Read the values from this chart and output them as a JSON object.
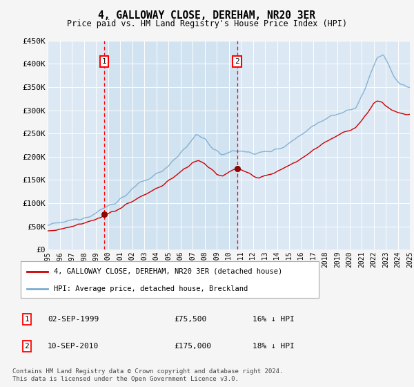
{
  "title": "4, GALLOWAY CLOSE, DEREHAM, NR20 3ER",
  "subtitle": "Price paid vs. HM Land Registry's House Price Index (HPI)",
  "transaction1": {
    "date": "02-SEP-1999",
    "year": 1999.67,
    "price": 75500,
    "label": "1",
    "hpi_pct": "16% ↓ HPI"
  },
  "transaction2": {
    "date": "10-SEP-2010",
    "year": 2010.69,
    "price": 175000,
    "label": "2",
    "hpi_pct": "18% ↓ HPI"
  },
  "legend_entry1": "4, GALLOWAY CLOSE, DEREHAM, NR20 3ER (detached house)",
  "legend_entry2": "HPI: Average price, detached house, Breckland",
  "footnote": "Contains HM Land Registry data © Crown copyright and database right 2024.\nThis data is licensed under the Open Government Licence v3.0.",
  "line_color_red": "#cc0000",
  "line_color_blue": "#7aadcf",
  "plot_bg_color": "#dce8f4",
  "fig_bg_color": "#f5f5f5",
  "shade_color": "#c8ddf0",
  "xlim": [
    1995,
    2025
  ],
  "ylim": [
    0,
    450000
  ],
  "yticks": [
    0,
    50000,
    100000,
    150000,
    200000,
    250000,
    300000,
    350000,
    400000,
    450000
  ],
  "ytick_labels": [
    "£0",
    "£50K",
    "£100K",
    "£150K",
    "£200K",
    "£250K",
    "£300K",
    "£350K",
    "£400K",
    "£450K"
  ],
  "xticks": [
    1995,
    1996,
    1997,
    1998,
    1999,
    2000,
    2001,
    2002,
    2003,
    2004,
    2005,
    2006,
    2007,
    2008,
    2009,
    2010,
    2011,
    2012,
    2013,
    2014,
    2015,
    2016,
    2017,
    2018,
    2019,
    2020,
    2021,
    2022,
    2023,
    2024,
    2025
  ]
}
